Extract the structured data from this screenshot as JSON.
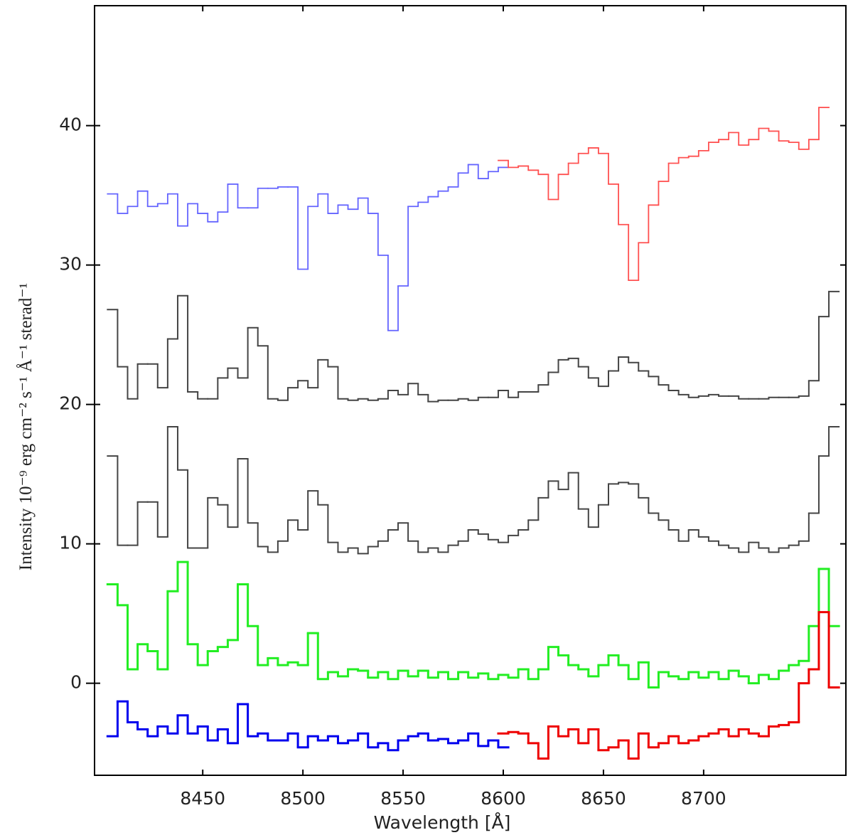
{
  "chart_data": {
    "type": "step",
    "xlabel": "Wavelength [Å]",
    "ylabel": "Intensity 10⁻⁹ erg cm⁻² s⁻¹ Å⁻¹ sterad⁻¹",
    "xlim": [
      8396,
      8771
    ],
    "xticks": [
      8450,
      8500,
      8550,
      8600,
      8650,
      8700
    ],
    "ylim": [
      -6.6,
      48.6
    ],
    "yticks": [
      0,
      10,
      20,
      30,
      40
    ],
    "series": [
      {
        "color": "#6464ff",
        "linewidth": 1.8,
        "x": [
          8405,
          8410,
          8415,
          8420,
          8425,
          8430,
          8435,
          8440,
          8445,
          8450,
          8455,
          8460,
          8465,
          8470,
          8475,
          8480,
          8485,
          8490,
          8495,
          8500,
          8505,
          8510,
          8515,
          8520,
          8525,
          8530,
          8535,
          8540,
          8545,
          8550,
          8555,
          8560,
          8565,
          8570,
          8575,
          8580,
          8585,
          8590,
          8595,
          8600
        ],
        "values": [
          35.1,
          33.7,
          34.2,
          35.3,
          34.2,
          34.4,
          35.1,
          32.8,
          34.4,
          33.7,
          33.1,
          33.8,
          35.8,
          34.1,
          34.1,
          35.5,
          35.5,
          35.6,
          35.6,
          29.7,
          34.2,
          35.1,
          33.7,
          34.3,
          34.0,
          34.8,
          33.7,
          30.7,
          25.3,
          28.5,
          34.2,
          34.5,
          34.9,
          35.3,
          35.6,
          36.6,
          37.2,
          36.2,
          36.7,
          37.0
        ]
      },
      {
        "color": "#ff5050",
        "linewidth": 1.8,
        "x": [
          8600,
          8605,
          8610,
          8615,
          8620,
          8625,
          8630,
          8635,
          8640,
          8645,
          8650,
          8655,
          8660,
          8665,
          8670,
          8675,
          8680,
          8685,
          8690,
          8695,
          8700,
          8705,
          8710,
          8715,
          8720,
          8725,
          8730,
          8735,
          8740,
          8745,
          8750,
          8755,
          8760
        ],
        "values": [
          37.5,
          37.0,
          37.1,
          36.8,
          36.5,
          34.7,
          36.5,
          37.3,
          38.0,
          38.4,
          38.0,
          35.8,
          32.9,
          28.9,
          31.6,
          34.3,
          36.0,
          37.3,
          37.7,
          37.8,
          38.2,
          38.8,
          39.0,
          39.5,
          38.6,
          39.0,
          39.8,
          39.6,
          38.9,
          38.8,
          38.3,
          39.0,
          41.3
        ]
      },
      {
        "color": "#444444",
        "linewidth": 2,
        "x": [
          8405,
          8410,
          8415,
          8420,
          8425,
          8430,
          8435,
          8440,
          8445,
          8450,
          8455,
          8460,
          8465,
          8470,
          8475,
          8480,
          8485,
          8490,
          8495,
          8500,
          8505,
          8510,
          8515,
          8520,
          8525,
          8530,
          8535,
          8540,
          8545,
          8550,
          8555,
          8560,
          8565,
          8570,
          8575,
          8580,
          8585,
          8590,
          8595,
          8600,
          8605,
          8610,
          8615,
          8620,
          8625,
          8630,
          8635,
          8640,
          8645,
          8650,
          8655,
          8660,
          8665,
          8670,
          8675,
          8680,
          8685,
          8690,
          8695,
          8700,
          8705,
          8710,
          8715,
          8720,
          8725,
          8730,
          8735,
          8740,
          8745,
          8750,
          8755,
          8760,
          8765
        ],
        "values": [
          26.8,
          22.7,
          20.4,
          22.9,
          22.9,
          21.2,
          24.7,
          27.8,
          20.9,
          20.4,
          20.4,
          21.9,
          22.6,
          21.9,
          25.5,
          24.2,
          20.4,
          20.3,
          21.2,
          21.7,
          21.2,
          23.2,
          22.7,
          20.4,
          20.3,
          20.4,
          20.3,
          20.4,
          21.0,
          20.7,
          21.5,
          20.7,
          20.2,
          20.3,
          20.3,
          20.4,
          20.3,
          20.5,
          20.5,
          21.0,
          20.5,
          20.9,
          20.9,
          21.4,
          22.3,
          23.2,
          23.3,
          22.7,
          21.9,
          21.3,
          22.4,
          23.4,
          23.0,
          22.4,
          22.0,
          21.4,
          21.0,
          20.7,
          20.5,
          20.6,
          20.7,
          20.6,
          20.6,
          20.4,
          20.4,
          20.4,
          20.5,
          20.5,
          20.5,
          20.6,
          21.7,
          26.3,
          28.1
        ]
      },
      {
        "color": "#444444",
        "linewidth": 2,
        "x": [
          8405,
          8410,
          8415,
          8420,
          8425,
          8430,
          8435,
          8440,
          8445,
          8450,
          8455,
          8460,
          8465,
          8470,
          8475,
          8480,
          8485,
          8490,
          8495,
          8500,
          8505,
          8510,
          8515,
          8520,
          8525,
          8530,
          8535,
          8540,
          8545,
          8550,
          8555,
          8560,
          8565,
          8570,
          8575,
          8580,
          8585,
          8590,
          8595,
          8600,
          8605,
          8610,
          8615,
          8620,
          8625,
          8630,
          8635,
          8640,
          8645,
          8650,
          8655,
          8660,
          8665,
          8670,
          8675,
          8680,
          8685,
          8690,
          8695,
          8700,
          8705,
          8710,
          8715,
          8720,
          8725,
          8730,
          8735,
          8740,
          8745,
          8750,
          8755,
          8760,
          8765
        ],
        "values": [
          16.3,
          9.9,
          9.9,
          13.0,
          13.0,
          10.5,
          18.4,
          15.3,
          9.7,
          9.7,
          13.3,
          12.8,
          11.2,
          16.1,
          11.5,
          9.8,
          9.4,
          10.2,
          11.7,
          11.0,
          13.8,
          12.8,
          10.1,
          9.4,
          9.7,
          9.3,
          9.8,
          10.2,
          11.0,
          11.5,
          10.2,
          9.4,
          9.7,
          9.4,
          9.9,
          10.2,
          11.0,
          10.7,
          10.3,
          10.1,
          10.6,
          11.0,
          11.7,
          13.3,
          14.5,
          13.9,
          15.1,
          12.5,
          11.2,
          12.8,
          14.3,
          14.4,
          14.3,
          13.3,
          12.2,
          11.7,
          11.0,
          10.2,
          11.0,
          10.5,
          10.2,
          9.9,
          9.7,
          9.4,
          10.1,
          9.7,
          9.4,
          9.7,
          9.9,
          10.2,
          12.2,
          16.3,
          18.4
        ]
      },
      {
        "color": "#22ee22",
        "linewidth": 3,
        "x": [
          8405,
          8410,
          8415,
          8420,
          8425,
          8430,
          8435,
          8440,
          8445,
          8450,
          8455,
          8460,
          8465,
          8470,
          8475,
          8480,
          8485,
          8490,
          8495,
          8500,
          8505,
          8510,
          8515,
          8520,
          8525,
          8530,
          8535,
          8540,
          8545,
          8550,
          8555,
          8560,
          8565,
          8570,
          8575,
          8580,
          8585,
          8590,
          8595,
          8600,
          8605,
          8610,
          8615,
          8620,
          8625,
          8630,
          8635,
          8640,
          8645,
          8650,
          8655,
          8660,
          8665,
          8670,
          8675,
          8680,
          8685,
          8690,
          8695,
          8700,
          8705,
          8710,
          8715,
          8720,
          8725,
          8730,
          8735,
          8740,
          8745,
          8750,
          8755,
          8760,
          8765
        ],
        "values": [
          7.1,
          5.6,
          1.0,
          2.8,
          2.3,
          1.0,
          6.6,
          8.7,
          2.8,
          1.3,
          2.3,
          2.6,
          3.1,
          7.1,
          4.1,
          1.3,
          1.8,
          1.3,
          1.5,
          1.3,
          3.6,
          0.3,
          0.8,
          0.5,
          1.0,
          0.9,
          0.4,
          0.8,
          0.3,
          0.9,
          0.5,
          0.9,
          0.4,
          0.8,
          0.3,
          0.8,
          0.4,
          0.7,
          0.3,
          0.6,
          0.4,
          1.0,
          0.3,
          1.0,
          2.6,
          2.0,
          1.3,
          1.0,
          0.5,
          1.3,
          2.0,
          1.3,
          0.3,
          1.5,
          -0.3,
          0.8,
          0.5,
          0.3,
          0.8,
          0.4,
          0.8,
          0.3,
          0.9,
          0.5,
          0.0,
          0.6,
          0.3,
          0.9,
          1.3,
          1.6,
          4.1,
          8.2,
          4.1
        ]
      },
      {
        "color": "#0000ee",
        "linewidth": 3,
        "x": [
          8405,
          8410,
          8415,
          8420,
          8425,
          8430,
          8435,
          8440,
          8445,
          8450,
          8455,
          8460,
          8465,
          8470,
          8475,
          8480,
          8485,
          8490,
          8495,
          8500,
          8505,
          8510,
          8515,
          8520,
          8525,
          8530,
          8535,
          8540,
          8545,
          8550,
          8555,
          8560,
          8565,
          8570,
          8575,
          8580,
          8585,
          8590,
          8595,
          8600
        ],
        "values": [
          -3.8,
          -1.3,
          -2.8,
          -3.3,
          -3.8,
          -3.1,
          -3.6,
          -2.3,
          -3.6,
          -3.1,
          -4.1,
          -3.3,
          -4.3,
          -1.5,
          -3.8,
          -3.6,
          -4.1,
          -4.1,
          -3.6,
          -4.6,
          -3.8,
          -4.1,
          -3.8,
          -4.3,
          -4.1,
          -3.6,
          -4.6,
          -4.3,
          -4.8,
          -4.1,
          -3.8,
          -3.6,
          -4.1,
          -4.0,
          -4.3,
          -4.1,
          -3.6,
          -4.5,
          -4.1,
          -4.6
        ]
      },
      {
        "color": "#ee0000",
        "linewidth": 3,
        "x": [
          8600,
          8605,
          8610,
          8615,
          8620,
          8625,
          8630,
          8635,
          8640,
          8645,
          8650,
          8655,
          8660,
          8665,
          8670,
          8675,
          8680,
          8685,
          8690,
          8695,
          8700,
          8705,
          8710,
          8715,
          8720,
          8725,
          8730,
          8735,
          8740,
          8745,
          8750,
          8755,
          8760,
          8765
        ],
        "values": [
          -3.6,
          -3.5,
          -3.6,
          -4.3,
          -5.4,
          -3.1,
          -3.8,
          -3.3,
          -4.3,
          -3.3,
          -4.8,
          -4.6,
          -4.1,
          -5.4,
          -3.6,
          -4.6,
          -4.3,
          -3.8,
          -4.3,
          -4.1,
          -3.8,
          -3.6,
          -3.3,
          -3.8,
          -3.3,
          -3.6,
          -3.8,
          -3.1,
          -3.0,
          -2.8,
          0.0,
          1.0,
          5.1,
          -0.3
        ]
      }
    ]
  }
}
